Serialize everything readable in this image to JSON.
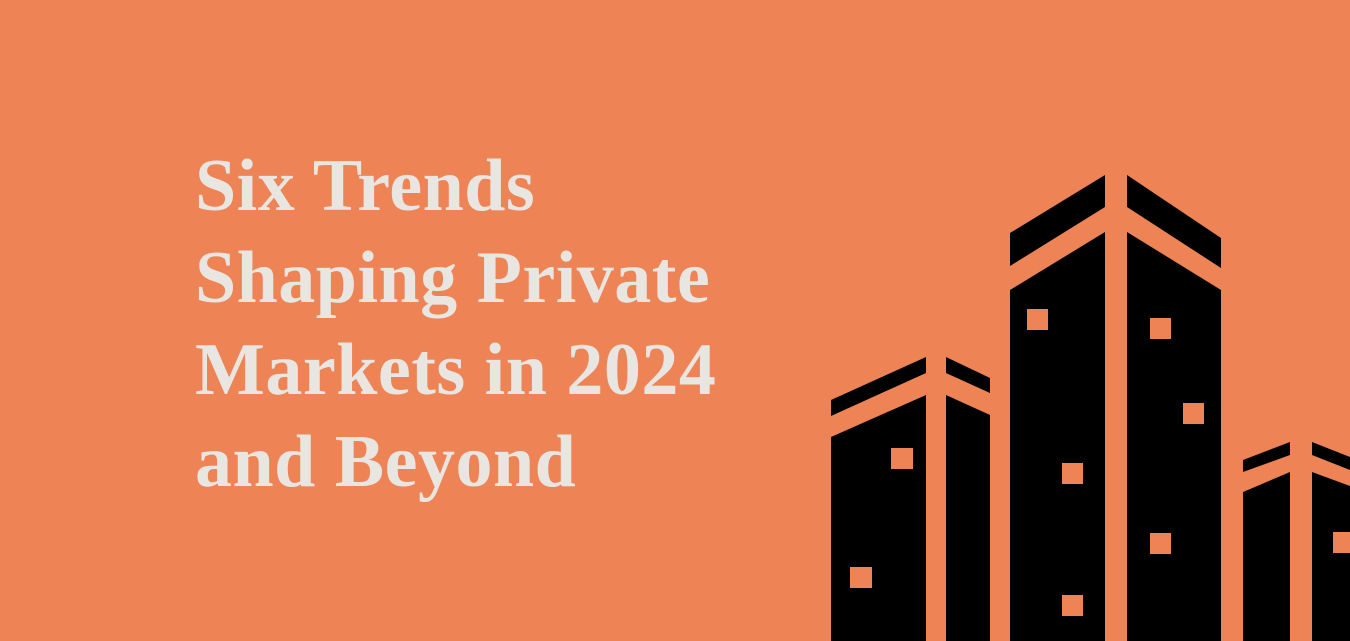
{
  "title": {
    "lines": [
      "Six Trends",
      "Shaping Private",
      "Markets in 2024",
      "and Beyond"
    ]
  }
}
